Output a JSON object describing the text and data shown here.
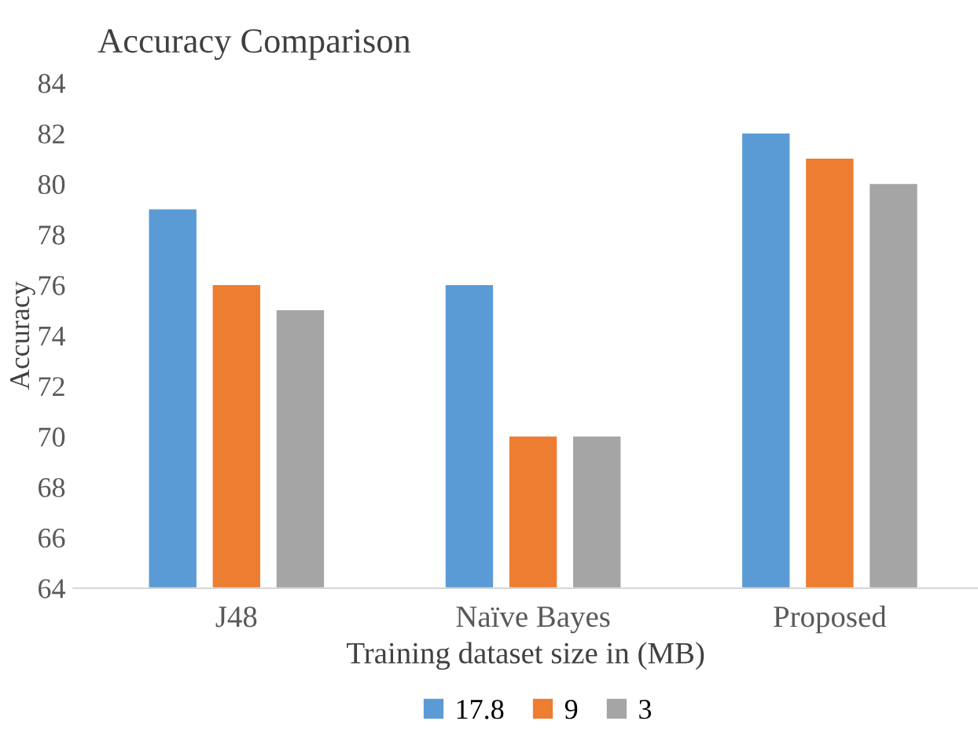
{
  "chart_data": {
    "type": "bar",
    "title": "Accuracy Comparison",
    "xlabel": "Training dataset size in (MB)",
    "ylabel": "Accuracy",
    "categories": [
      "J48",
      "Naïve Bayes",
      "Proposed"
    ],
    "series": [
      {
        "name": "17.8",
        "color": "#5b9bd5",
        "values": [
          79,
          76,
          82
        ]
      },
      {
        "name": "9",
        "color": "#ed7d31",
        "values": [
          76,
          70,
          81
        ]
      },
      {
        "name": "3",
        "color": "#a5a5a5",
        "values": [
          75,
          70,
          80
        ]
      }
    ],
    "ylim": [
      64,
      84
    ],
    "yticks": [
      64,
      66,
      68,
      70,
      72,
      74,
      76,
      78,
      80,
      82,
      84
    ],
    "grid": false,
    "legend": "bottom"
  }
}
